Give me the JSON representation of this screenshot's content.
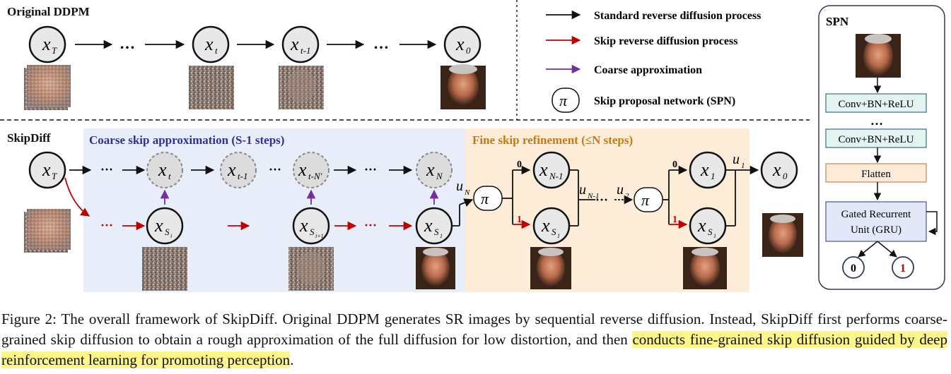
{
  "sections": {
    "original": "Original DDPM",
    "skipdiff": "SkipDiff",
    "coarse": "Coarse skip approximation (S-1 steps)",
    "fine": "Fine skip refinement (≤N steps)"
  },
  "legend": {
    "standard": "Standard reverse diffusion process",
    "skip": "Skip reverse diffusion process",
    "coarse": "Coarse approximation",
    "spn": "Skip proposal network (SPN)",
    "pi": "π"
  },
  "colors": {
    "black_arrow": "#111111",
    "red_arrow": "#c00000",
    "purple_arrow": "#7030a0",
    "coarse_bg": "#e8edfa",
    "fine_bg": "#fcecd8",
    "coarse_title": "#2e3192",
    "fine_title": "#c57a12",
    "conv_fill": "#e2f3f2",
    "flatten_fill": "#fdebd8",
    "gru_fill": "#e3e8f8",
    "highlight": "#fbf58a"
  },
  "nodes": {
    "xT": "x",
    "xT_sub": "T",
    "xt": "x",
    "xt_sub": "t",
    "xt1": "x",
    "xt1_sub": "t-1",
    "x0": "x",
    "x0_sub": "0",
    "xtN": "x",
    "xtN_sub": "t-N'",
    "xN": "x",
    "xN_sub": "N",
    "xN1": "x",
    "xN1_sub": "N-1",
    "x1": "x",
    "x1_sub": "1",
    "xS": "x",
    "xS_sub": "S",
    "xS_subsub_i": "i",
    "xS_subsub_i1": "i+1",
    "xS_subsub_1": "1",
    "dots": "…",
    "dots_small": "···"
  },
  "labels": {
    "uN": "u",
    "uN_sub": "N",
    "uN1": "u",
    "uN1_sub": "N-1",
    "u2": "u",
    "u2_sub": "2",
    "u1": "u",
    "u1_sub": "1",
    "zero": "0",
    "one": "1"
  },
  "spn": {
    "title": "SPN",
    "conv1": "Conv+BN+ReLU",
    "dots": "…",
    "conv2": "Conv+BN+ReLU",
    "flatten": "Flatten",
    "gru_line1": "Gated Recurrent",
    "gru_line2": "Unit (GRU)",
    "out0": "0",
    "out1": "1"
  },
  "caption": {
    "part1": "Figure 2: The overall framework of SkipDiff. Original DDPM generates SR images by sequential reverse diffusion. Instead, SkipDiff first performs coarse-grained skip diffusion to obtain a rough approximation of the full diffusion for low distortion, and then ",
    "highlighted": "conducts fine-grained skip diffusion guided by deep reinforcement learning for promoting perception",
    "part2": "."
  }
}
